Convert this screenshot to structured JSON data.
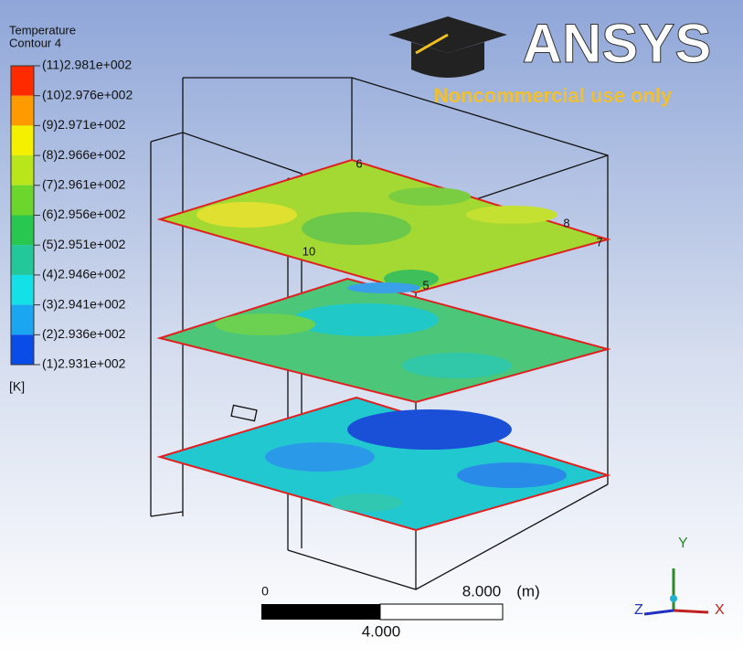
{
  "legend": {
    "title": "Temperature",
    "subtitle": "Contour 4",
    "unit": "[K]",
    "entries": [
      "(11)2.981e+002",
      "(10)2.976e+002",
      "(9)2.971e+002",
      "(8)2.966e+002",
      "(7)2.961e+002",
      "(6)2.956e+002",
      "(5)2.951e+002",
      "(4)2.946e+002",
      "(3)2.941e+002",
      "(2)2.936e+002",
      "(1)2.931e+002"
    ]
  },
  "logo": {
    "brand": "ANSYS",
    "notice": "Noncommercial use only"
  },
  "scale_bar": {
    "start": "0",
    "end": "8.000",
    "unit": "(m)",
    "middle": "4.000"
  },
  "axes": {
    "y": "Y",
    "z": "Z",
    "x": "X"
  },
  "contour_labels": [
    "6",
    "8",
    "7",
    "10",
    "5"
  ]
}
